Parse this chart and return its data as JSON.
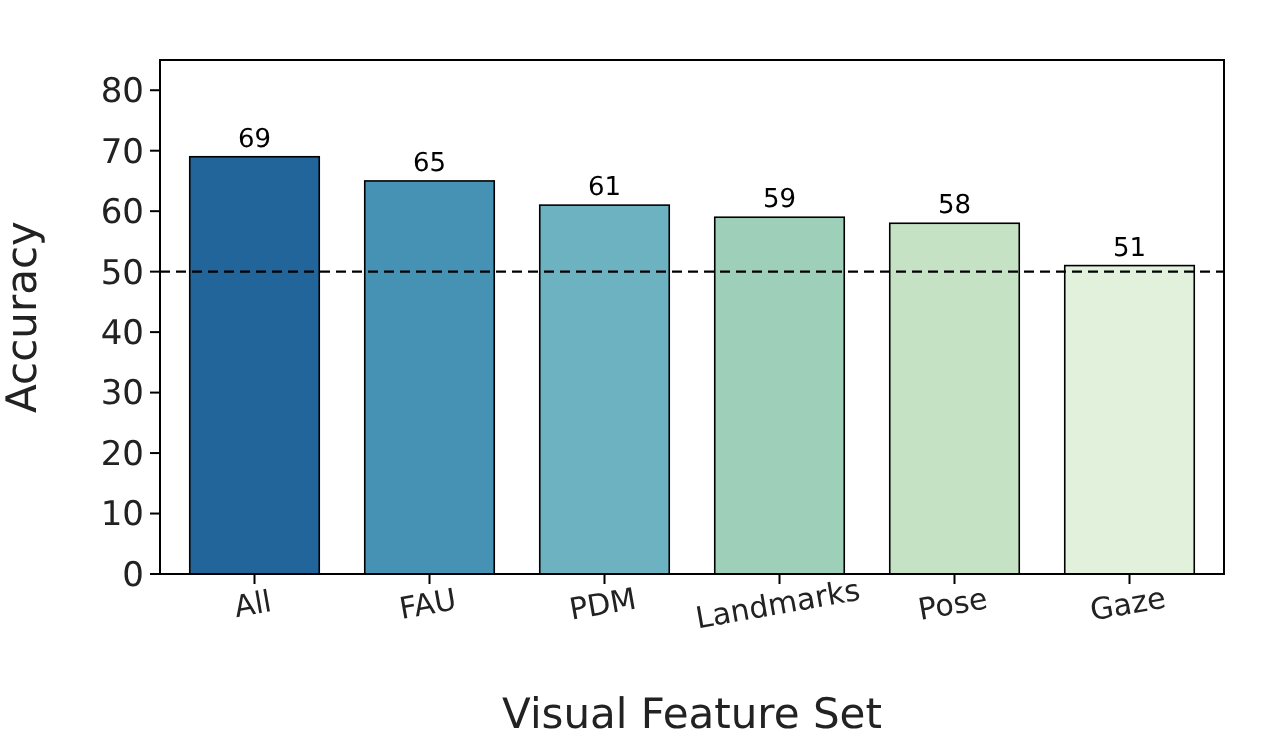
{
  "chart_data": {
    "type": "bar",
    "xlabel": "Visual Feature Set",
    "ylabel": "Accuracy",
    "categories": [
      "All",
      "FAU",
      "PDM",
      "Landmarks",
      "Pose",
      "Gaze"
    ],
    "values": [
      69,
      65,
      61,
      59,
      58,
      51
    ],
    "colors": [
      "#22659a",
      "#4592b4",
      "#6cb2c0",
      "#9dcfb9",
      "#c5e3c4",
      "#e2f1dc"
    ],
    "ylim": [
      0,
      85
    ],
    "yticks": [
      0,
      10,
      20,
      30,
      40,
      50,
      60,
      70,
      80
    ],
    "ref_lines": [
      {
        "axis": "y",
        "value": 50,
        "color": "#000000",
        "line_style": "dashed"
      }
    ],
    "data_labels": true,
    "grid": false
  }
}
